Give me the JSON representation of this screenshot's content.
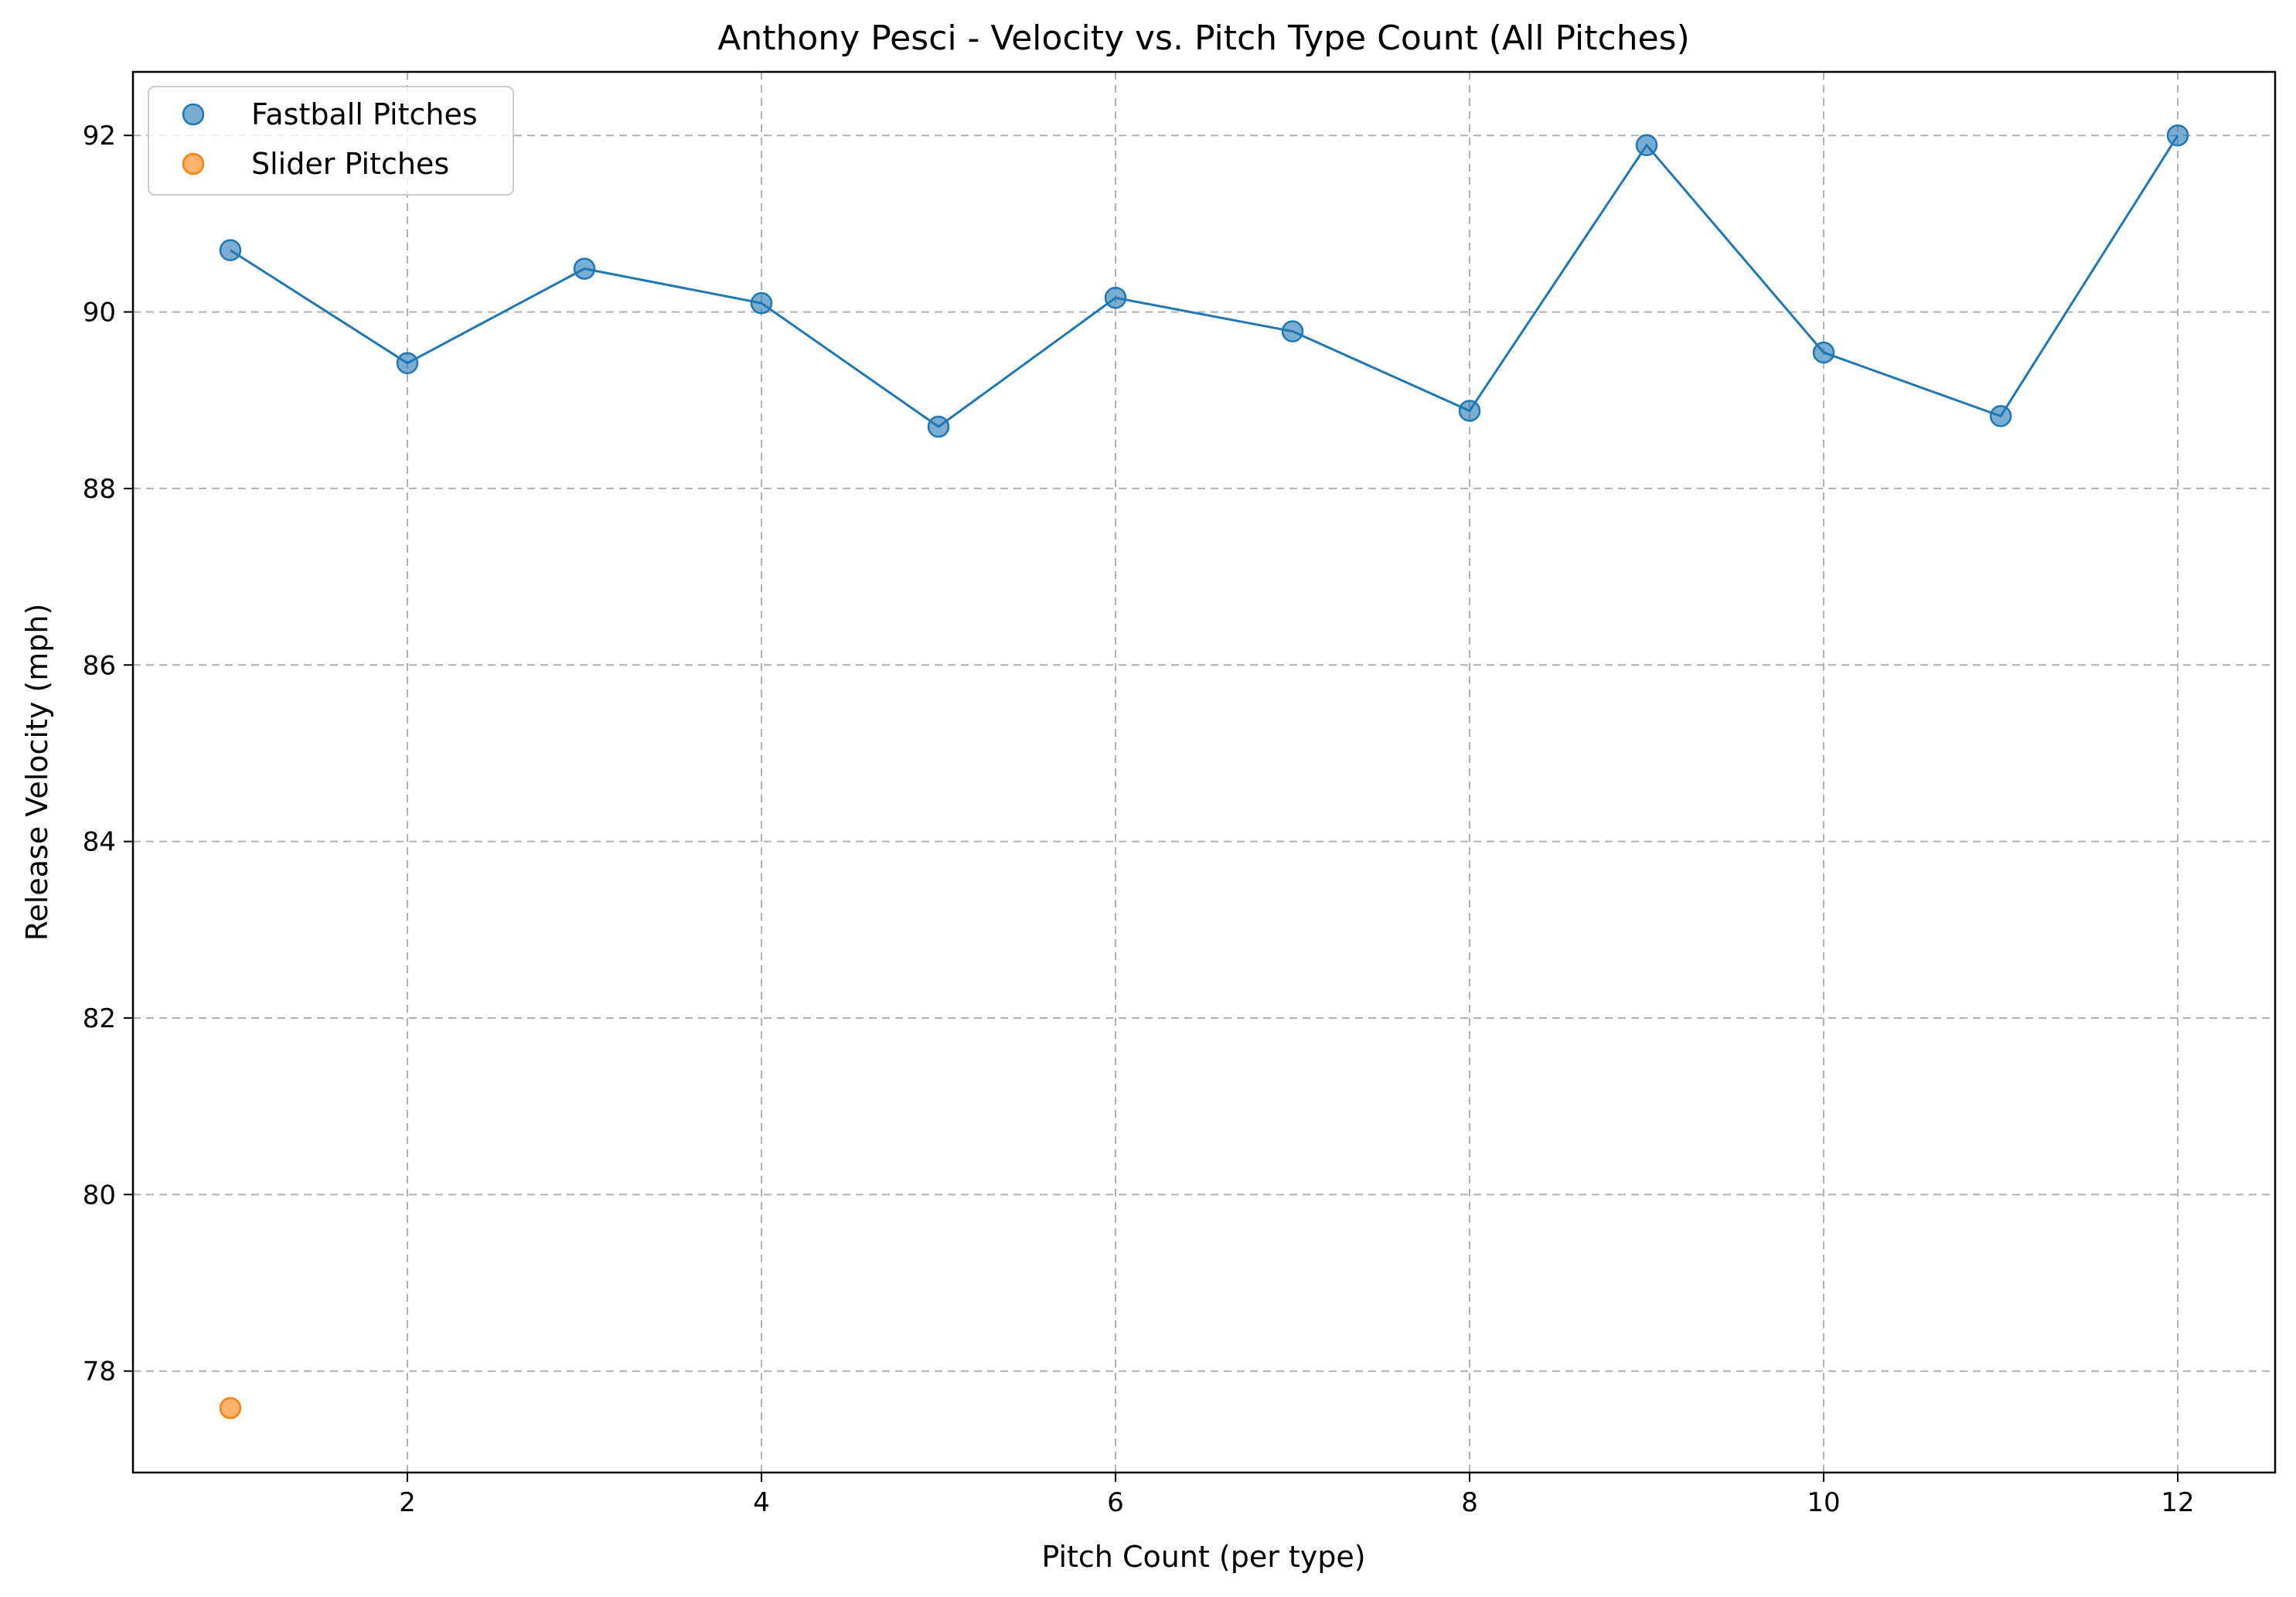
{
  "chart_data": {
    "type": "scatter",
    "title": "Anthony Pesci - Velocity vs. Pitch Type Count (All Pitches)",
    "xlabel": "Pitch Count (per type)",
    "ylabel": "Release Velocity (mph)",
    "xlim": [
      0.45,
      12.55
    ],
    "ylim": [
      76.85,
      92.72
    ],
    "xticks": [
      2,
      4,
      6,
      8,
      10,
      12
    ],
    "yticks": [
      78,
      80,
      82,
      84,
      86,
      88,
      90,
      92
    ],
    "grid": true,
    "legend_position": "top-left",
    "series": [
      {
        "name": "Fastball Pitches",
        "color": "#1f77b4",
        "connected": true,
        "x": [
          1,
          2,
          3,
          4,
          5,
          6,
          7,
          8,
          9,
          10,
          11,
          12
        ],
        "y": [
          90.7,
          89.42,
          90.49,
          90.1,
          88.7,
          90.16,
          89.78,
          88.88,
          91.89,
          89.54,
          88.82,
          92.0
        ]
      },
      {
        "name": "Slider Pitches",
        "color": "#ff7f0e",
        "connected": false,
        "x": [
          1
        ],
        "y": [
          77.58
        ]
      }
    ]
  }
}
